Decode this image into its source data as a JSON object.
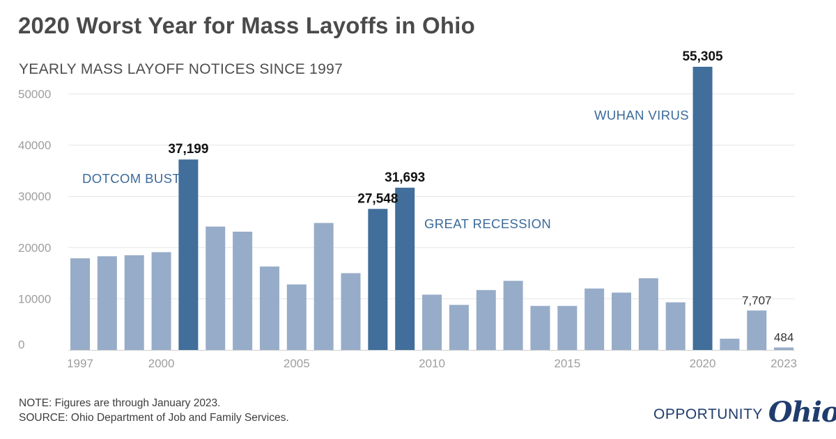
{
  "header": {
    "title": "2020 Worst Year for Mass Layoffs in Ohio",
    "subtitle": "YEARLY MASS LAYOFF NOTICES SINCE 1997"
  },
  "notes": {
    "note": "NOTE: Figures are through January 2023.",
    "source": "SOURCE: Ohio Department of Job and Family Services."
  },
  "logo": {
    "word": "OPPORTUNITY",
    "script": "Ohio"
  },
  "colors": {
    "light_bar": "#97acc8",
    "dark_bar": "#416e9a",
    "annotation": "#3b6a9a",
    "grid": "#e4e4e4",
    "axis_text": "#9e9e9e"
  },
  "chart_data": {
    "type": "bar",
    "title": "2020 Worst Year for Mass Layoffs in Ohio",
    "subtitle": "YEARLY MASS LAYOFF NOTICES SINCE 1997",
    "xlabel": "",
    "ylabel": "",
    "ylim": [
      0,
      55000
    ],
    "grid": true,
    "yticks": [
      0,
      10000,
      20000,
      30000,
      40000,
      50000
    ],
    "xticks": [
      "1997",
      "2000",
      "2005",
      "2010",
      "2015",
      "2020",
      "2023"
    ],
    "categories": [
      "1997",
      "1998",
      "1999",
      "2000",
      "2001",
      "2002",
      "2003",
      "2004",
      "2005",
      "2006",
      "2007",
      "2008",
      "2009",
      "2010",
      "2011",
      "2012",
      "2013",
      "2014",
      "2015",
      "2016",
      "2017",
      "2018",
      "2019",
      "2020",
      "2021",
      "2022",
      "2023"
    ],
    "values": [
      17900,
      18300,
      18500,
      19100,
      37199,
      24100,
      23100,
      16300,
      12800,
      24800,
      15000,
      27548,
      31693,
      10800,
      8800,
      11700,
      13500,
      8600,
      8600,
      12000,
      11200,
      14000,
      9300,
      55305,
      2200,
      7707,
      484
    ],
    "highlighted": [
      "2001",
      "2008",
      "2009",
      "2020"
    ],
    "data_labels": [
      {
        "category": "2001",
        "label": "37,199"
      },
      {
        "category": "2008",
        "label": "27,548"
      },
      {
        "category": "2009",
        "label": "31,693"
      },
      {
        "category": "2020",
        "label": "55,305"
      },
      {
        "category": "2022",
        "label": "7,707"
      },
      {
        "category": "2023",
        "label": "484"
      }
    ],
    "annotations": [
      {
        "text": "DOTCOM BUST"
      },
      {
        "text": "GREAT RECESSION"
      },
      {
        "text": "WUHAN VIRUS"
      }
    ]
  }
}
